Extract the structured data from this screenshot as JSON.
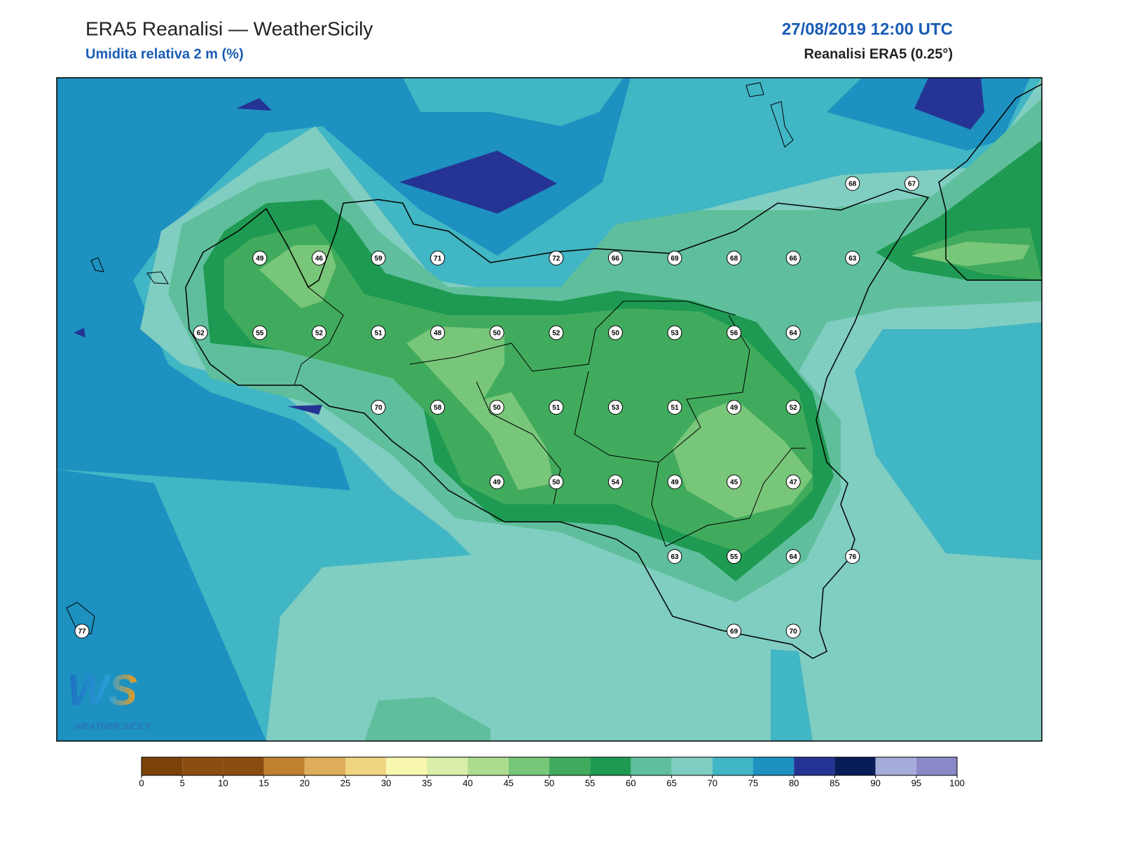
{
  "header": {
    "title": "ERA5 Reanalisi — WeatherSicily",
    "subtitle": "Umidita relativa 2 m (%)",
    "datetime": "27/08/2019 12:00 UTC",
    "source": "Reanalisi ERA5 (0.25°)"
  },
  "stations": [
    68,
    67,
    49,
    46,
    59,
    71,
    72,
    66,
    69,
    68,
    66,
    63,
    62,
    55,
    52,
    51,
    48,
    50,
    52,
    50,
    53,
    56,
    64,
    70,
    58,
    50,
    51,
    53,
    51,
    49,
    52,
    49,
    50,
    54,
    49,
    45,
    47,
    63,
    55,
    64,
    76,
    77,
    69,
    70
  ],
  "colorbar": {
    "ticks": [
      0,
      5,
      10,
      15,
      20,
      25,
      30,
      35,
      40,
      45,
      50,
      55,
      60,
      65,
      70,
      75,
      80,
      85,
      90,
      95,
      100
    ],
    "colors": [
      "#7a4208",
      "#8b4c0f",
      "#8b4c0f",
      "#c0802e",
      "#dfae5a",
      "#f0d580",
      "#f7f7b0",
      "#d9eea8",
      "#aedc8e",
      "#78c679",
      "#41ab5d",
      "#1e9a52",
      "#5fbf9c",
      "#80cdc1",
      "#41b6c4",
      "#1d91c0",
      "#253494",
      "#081d58",
      "#a6acd9",
      "#8c89c8"
    ]
  },
  "logo": {
    "mark": "WS",
    "text": "WEATHER SICILY"
  }
}
